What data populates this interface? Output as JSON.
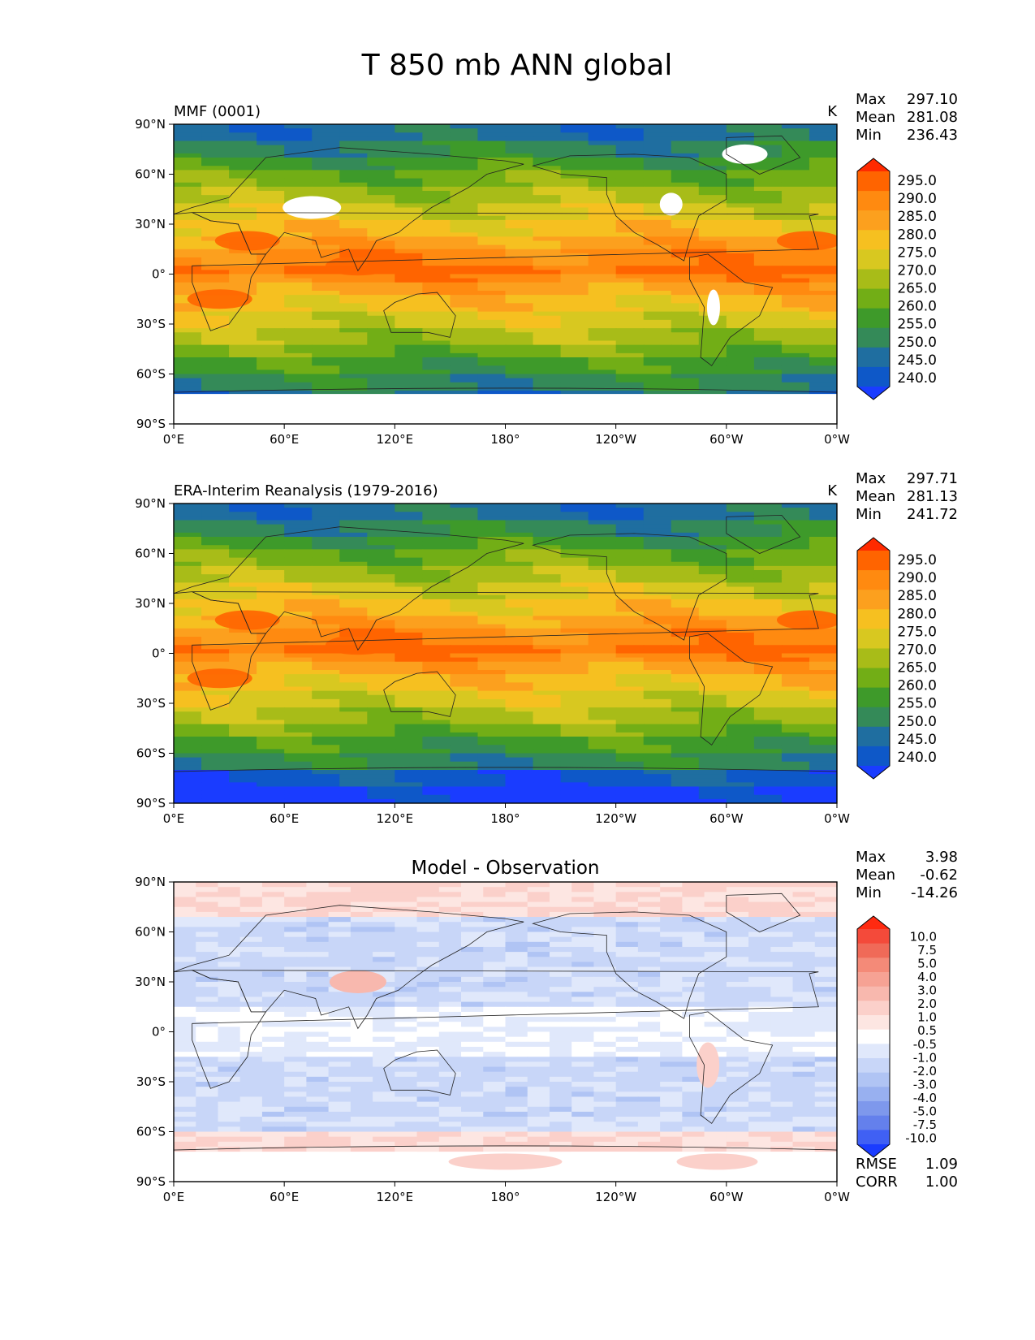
{
  "title": "T 850 mb ANN global",
  "chart_data": [
    {
      "type": "heatmap",
      "panel_label": "MMF (0001)",
      "units": "K",
      "stats": [
        {
          "label": "Max",
          "value": "297.10"
        },
        {
          "label": "Mean",
          "value": "281.08"
        },
        {
          "label": "Min",
          "value": "236.43"
        }
      ],
      "colorbar_levels": [
        "295.0",
        "290.0",
        "285.0",
        "280.0",
        "275.0",
        "270.0",
        "265.0",
        "260.0",
        "255.0",
        "250.0",
        "245.0",
        "240.0"
      ],
      "colorbar_colors": [
        "#ff2a00",
        "#ff6400",
        "#ff8a10",
        "#fca01e",
        "#f6c020",
        "#d8c820",
        "#a8bc18",
        "#72ae16",
        "#3e9a2a",
        "#348a58",
        "#1f6ea0",
        "#0e58c8",
        "#1a3cff"
      ],
      "x_ticks": [
        "0°E",
        "60°E",
        "120°E",
        "180°",
        "120°W",
        "60°W",
        "0°W"
      ],
      "y_ticks": [
        "90°N",
        "60°N",
        "30°N",
        "0°",
        "30°S",
        "60°S",
        "90°S"
      ],
      "xlim": [
        0,
        360
      ],
      "ylim": [
        -90,
        90
      ]
    },
    {
      "type": "heatmap",
      "panel_label": "ERA-Interim Reanalysis (1979-2016)",
      "units": "K",
      "stats": [
        {
          "label": "Max",
          "value": "297.71"
        },
        {
          "label": "Mean",
          "value": "281.13"
        },
        {
          "label": "Min",
          "value": "241.72"
        }
      ],
      "colorbar_levels": [
        "295.0",
        "290.0",
        "285.0",
        "280.0",
        "275.0",
        "270.0",
        "265.0",
        "260.0",
        "255.0",
        "250.0",
        "245.0",
        "240.0"
      ],
      "colorbar_colors": [
        "#ff2a00",
        "#ff6400",
        "#ff8a10",
        "#fca01e",
        "#f6c020",
        "#d8c820",
        "#a8bc18",
        "#72ae16",
        "#3e9a2a",
        "#348a58",
        "#1f6ea0",
        "#0e58c8",
        "#1a3cff"
      ],
      "x_ticks": [
        "0°E",
        "60°E",
        "120°E",
        "180°",
        "120°W",
        "60°W",
        "0°W"
      ],
      "y_ticks": [
        "90°N",
        "60°N",
        "30°N",
        "0°",
        "30°S",
        "60°S",
        "90°S"
      ],
      "xlim": [
        0,
        360
      ],
      "ylim": [
        -90,
        90
      ]
    },
    {
      "type": "heatmap",
      "panel_label": "Model - Observation",
      "units": "",
      "stats": [
        {
          "label": "Max",
          "value": "3.98"
        },
        {
          "label": "Mean",
          "value": "-0.62"
        },
        {
          "label": "Min",
          "value": "-14.26"
        }
      ],
      "colorbar_levels": [
        "10.0",
        "7.5",
        "5.0",
        "4.0",
        "3.0",
        "2.0",
        "1.0",
        "0.5",
        "-0.5",
        "-1.0",
        "-2.0",
        "-3.0",
        "-4.0",
        "-5.0",
        "-7.5",
        "-10.0"
      ],
      "colorbar_colors": [
        "#ff2a10",
        "#f44a3a",
        "#f06a58",
        "#f48a78",
        "#f6a294",
        "#f8b8ae",
        "#fbd0ca",
        "#fde6e2",
        "#ffffff",
        "#e0e8fb",
        "#c8d6f8",
        "#b0c4f4",
        "#98b0f0",
        "#7e98ec",
        "#6480ec",
        "#4060f4",
        "#1a3cff"
      ],
      "x_ticks": [
        "0°E",
        "60°E",
        "120°E",
        "180°",
        "120°W",
        "60°W",
        "0°W"
      ],
      "y_ticks": [
        "90°N",
        "60°N",
        "30°N",
        "0°",
        "30°S",
        "60°S",
        "90°S"
      ],
      "xlim": [
        0,
        360
      ],
      "ylim": [
        -90,
        90
      ],
      "metrics": [
        {
          "label": "RMSE",
          "value": "1.09"
        },
        {
          "label": "CORR",
          "value": "1.00"
        }
      ]
    }
  ]
}
